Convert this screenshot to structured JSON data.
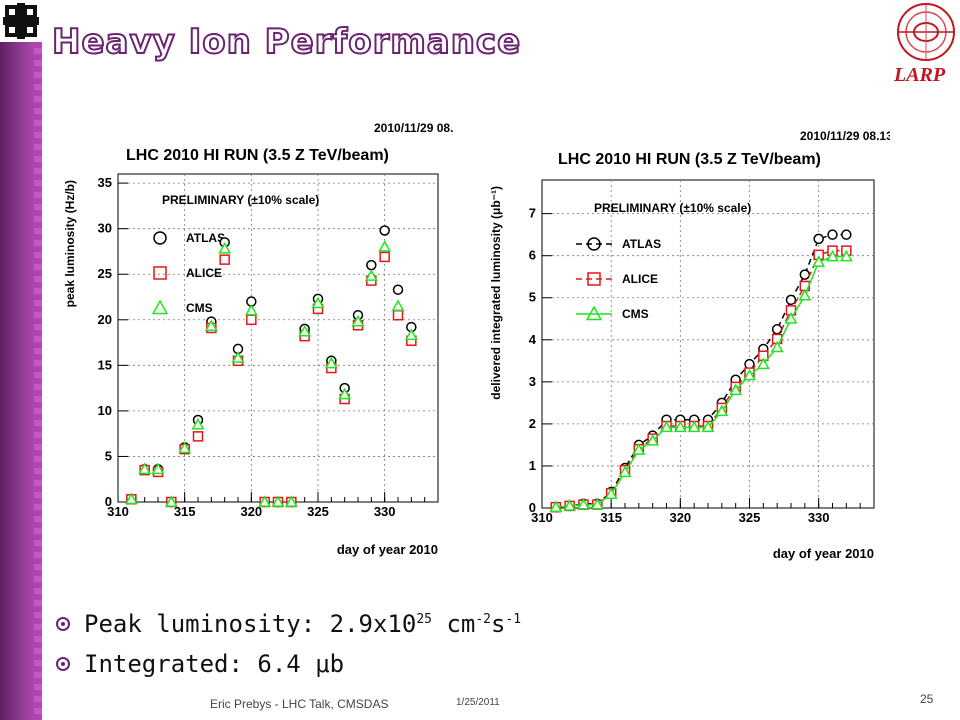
{
  "slide": {
    "title": "Heavy Ion Performance",
    "logo_right_text": "LARP",
    "footer_author": "Eric Prebys - LHC Talk, CMSDAS",
    "footer_date": "1/25/2011",
    "page_number": "25"
  },
  "bullets": [
    {
      "text": "Peak luminosity: 2.9x10",
      "sup1": "25",
      "mid": " cm",
      "sup2": "-2",
      "mid2": "s",
      "sup3": "-1"
    },
    {
      "text": "Integrated: 6.4 μb"
    }
  ],
  "colors": {
    "atlas": "#000000",
    "alice": "#e8141c",
    "cms": "#1ee61e",
    "accent": "#6a2470"
  },
  "chart_data": [
    {
      "type": "scatter",
      "timestamp": "2010/11/29   08.",
      "title": "LHC 2010 HI RUN (3.5 Z TeV/beam)",
      "annotation": "PRELIMINARY (±10% scale)",
      "xlabel": "day of year 2010",
      "ylabel": "peak luminosity (Hz/b)",
      "xlim": [
        310,
        334
      ],
      "ylim": [
        0,
        36
      ],
      "xticks": [
        310,
        315,
        320,
        325,
        330
      ],
      "yticks": [
        0,
        5,
        10,
        15,
        20,
        25,
        30,
        35
      ],
      "grid": true,
      "legend": "upper-left",
      "series": [
        {
          "name": "ATLAS",
          "marker": "circle",
          "x": [
            311,
            312,
            313,
            314,
            315,
            316,
            317,
            318,
            319,
            320,
            321,
            322,
            323,
            324,
            325,
            326,
            327,
            328,
            329,
            330,
            331,
            332
          ],
          "y": [
            0.3,
            3.6,
            3.6,
            0,
            6,
            9,
            19.8,
            28.5,
            16.8,
            22,
            0,
            0,
            0,
            19,
            22.3,
            15.5,
            12.5,
            20.5,
            26,
            29.8,
            23.3,
            19.2
          ]
        },
        {
          "name": "ALICE",
          "marker": "square",
          "x": [
            311,
            312,
            313,
            314,
            315,
            316,
            317,
            318,
            319,
            320,
            321,
            322,
            323,
            324,
            325,
            326,
            327,
            328,
            329,
            330,
            331,
            332
          ],
          "y": [
            0.3,
            3.5,
            3.3,
            0,
            5.8,
            7.2,
            19.1,
            26.6,
            15.5,
            20,
            0,
            0,
            0,
            18.2,
            21.2,
            14.7,
            11.3,
            19.4,
            24.3,
            26.9,
            20.5,
            17.7
          ]
        },
        {
          "name": "CMS",
          "marker": "triangle",
          "x": [
            311,
            312,
            313,
            314,
            315,
            316,
            317,
            318,
            319,
            320,
            321,
            322,
            323,
            324,
            325,
            326,
            327,
            328,
            329,
            330,
            331,
            332
          ],
          "y": [
            0.3,
            3.6,
            3.6,
            0,
            5.9,
            8.5,
            19.3,
            27.8,
            15.8,
            21,
            0,
            0,
            0,
            18.7,
            21.8,
            15.2,
            11.8,
            19.8,
            24.8,
            28,
            21.5,
            18.3
          ]
        }
      ]
    },
    {
      "type": "line",
      "timestamp": "2010/11/29   08.13",
      "title": "LHC 2010 HI RUN (3.5 Z TeV/beam)",
      "annotation": "PRELIMINARY (±10% scale)",
      "xlabel": "day of year 2010",
      "ylabel": "delivered integrated luminosity (μb⁻¹)",
      "xlim": [
        310,
        334
      ],
      "ylim": [
        0,
        7.8
      ],
      "xticks": [
        310,
        315,
        320,
        325,
        330
      ],
      "yticks": [
        0,
        1,
        2,
        3,
        4,
        5,
        6,
        7
      ],
      "grid": true,
      "legend": "upper-left",
      "series": [
        {
          "name": "ATLAS",
          "marker": "circle",
          "line": "dashed",
          "x": [
            311,
            312,
            313,
            314,
            315,
            316,
            317,
            318,
            319,
            320,
            321,
            322,
            323,
            324,
            325,
            326,
            327,
            328,
            329,
            330,
            331,
            332
          ],
          "y": [
            0.02,
            0.05,
            0.1,
            0.1,
            0.38,
            0.95,
            1.5,
            1.72,
            2.1,
            2.1,
            2.1,
            2.1,
            2.5,
            3.05,
            3.42,
            3.78,
            4.25,
            4.95,
            5.55,
            6.4,
            6.5,
            6.5
          ]
        },
        {
          "name": "ALICE",
          "marker": "square",
          "line": "dashed",
          "x": [
            311,
            312,
            313,
            314,
            315,
            316,
            317,
            318,
            319,
            320,
            321,
            322,
            323,
            324,
            325,
            326,
            327,
            328,
            329,
            330,
            331,
            332
          ],
          "y": [
            0.02,
            0.05,
            0.08,
            0.08,
            0.35,
            0.9,
            1.4,
            1.65,
            1.95,
            1.95,
            1.95,
            1.95,
            2.38,
            2.88,
            3.22,
            3.62,
            4.02,
            4.7,
            5.28,
            6.02,
            6.12,
            6.12
          ]
        },
        {
          "name": "CMS",
          "marker": "triangle",
          "line": "solid",
          "x": [
            311,
            312,
            313,
            314,
            315,
            316,
            317,
            318,
            319,
            320,
            321,
            322,
            323,
            324,
            325,
            326,
            327,
            328,
            329,
            330,
            331,
            332
          ],
          "y": [
            0.02,
            0.05,
            0.08,
            0.08,
            0.33,
            0.85,
            1.38,
            1.6,
            1.92,
            1.92,
            1.92,
            1.92,
            2.3,
            2.8,
            3.15,
            3.42,
            3.82,
            4.5,
            5.05,
            5.85,
            5.98,
            5.98
          ]
        }
      ]
    }
  ]
}
